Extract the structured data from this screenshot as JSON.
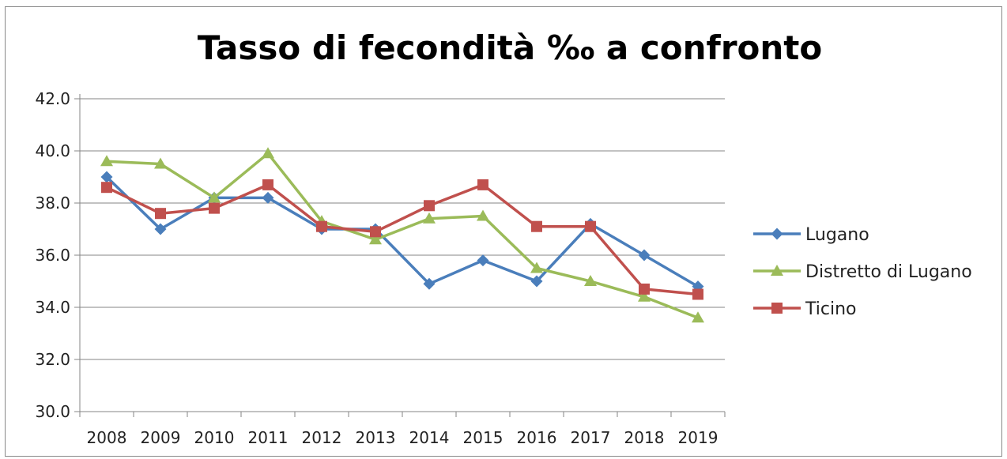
{
  "chart_data": {
    "type": "line",
    "title": "Tasso di fecondità ‰ a confronto",
    "xlabel": "",
    "ylabel": "",
    "categories": [
      "2008",
      "2009",
      "2010",
      "2011",
      "2012",
      "2013",
      "2014",
      "2015",
      "2016",
      "2017",
      "2018",
      "2019"
    ],
    "ylim": [
      30.0,
      42.0
    ],
    "yticks": [
      "30.0",
      "32.0",
      "34.0",
      "36.0",
      "38.0",
      "40.0",
      "42.0"
    ],
    "grid": true,
    "legend_position": "right",
    "series": [
      {
        "name": "Lugano",
        "color": "#4A7EBB",
        "marker": "diamond",
        "values": [
          39.0,
          37.0,
          38.2,
          38.2,
          37.0,
          37.0,
          34.9,
          35.8,
          35.0,
          37.2,
          36.0,
          34.8
        ]
      },
      {
        "name": "Distretto di Lugano",
        "color": "#9BBB59",
        "marker": "triangle",
        "values": [
          39.6,
          39.5,
          38.2,
          39.9,
          37.3,
          36.6,
          37.4,
          37.5,
          35.5,
          35.0,
          34.4,
          33.6
        ]
      },
      {
        "name": "Ticino",
        "color": "#C0504D",
        "marker": "square",
        "values": [
          38.6,
          37.6,
          37.8,
          38.7,
          37.1,
          36.9,
          37.9,
          38.7,
          37.1,
          37.1,
          34.7,
          34.5
        ]
      }
    ]
  }
}
